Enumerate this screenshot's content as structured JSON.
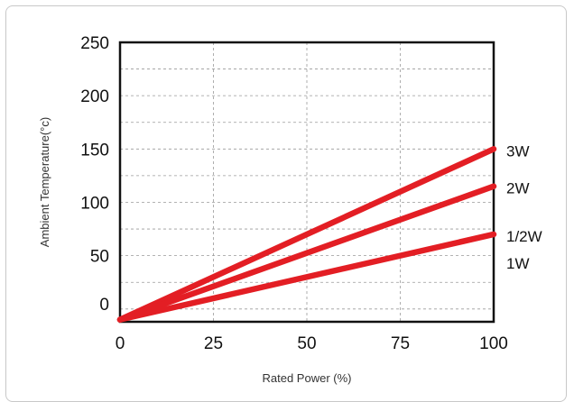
{
  "chart_data": {
    "type": "line",
    "xlabel": "Rated Power (%)",
    "ylabel": "Ambient Temperature(°c)",
    "xlim": [
      0,
      100
    ],
    "ylim": [
      -12,
      250
    ],
    "x_ticks": [
      "0",
      "25",
      "50",
      "75",
      "100"
    ],
    "y_ticks": [
      "0",
      "50",
      "100",
      "150",
      "200",
      "250"
    ],
    "grid": true,
    "series": [
      {
        "name": "3W",
        "x": [
          0,
          100
        ],
        "y": [
          -10,
          150
        ]
      },
      {
        "name": "2W",
        "x": [
          0,
          100
        ],
        "y": [
          -10,
          115
        ]
      },
      {
        "name": "1/2W",
        "x": [
          0,
          100
        ],
        "y": [
          -10,
          70
        ]
      }
    ],
    "extra_labels": [
      "1W"
    ],
    "colors": {
      "line": "#e31e24",
      "grid": "#9a9a9a",
      "axis": "#111111"
    }
  }
}
